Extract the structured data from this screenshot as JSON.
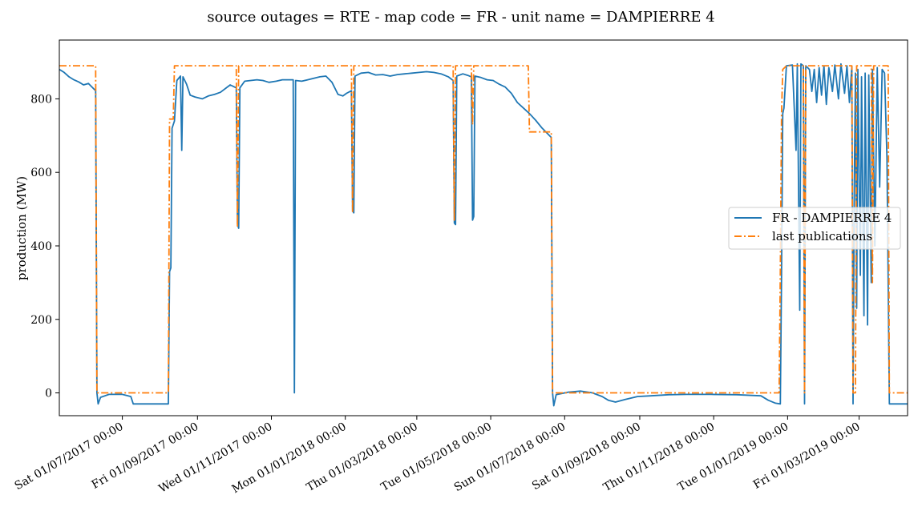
{
  "chart_data": {
    "type": "line",
    "title": "source outages = RTE - map code = FR - unit name = DAMPIERRE 4",
    "xlabel": "",
    "ylabel": "production (MW)",
    "x_axis": "date",
    "xlim": [
      "2017-05-10",
      "2019-04-10"
    ],
    "ylim": [
      -62,
      960
    ],
    "grid": false,
    "legend_position": "center-right",
    "x_ticks": [
      {
        "date": "2017-07-01",
        "label": "Sat 01/07/2017 00:00"
      },
      {
        "date": "2017-09-01",
        "label": "Fri 01/09/2017 00:00"
      },
      {
        "date": "2017-11-01",
        "label": "Wed 01/11/2017 00:00"
      },
      {
        "date": "2018-01-01",
        "label": "Mon 01/01/2018 00:00"
      },
      {
        "date": "2018-03-01",
        "label": "Thu 01/03/2018 00:00"
      },
      {
        "date": "2018-05-01",
        "label": "Tue 01/05/2018 00:00"
      },
      {
        "date": "2018-07-01",
        "label": "Sun 01/07/2018 00:00"
      },
      {
        "date": "2018-09-01",
        "label": "Sat 01/09/2018 00:00"
      },
      {
        "date": "2018-11-01",
        "label": "Thu 01/11/2018 00:00"
      },
      {
        "date": "2019-01-01",
        "label": "Tue 01/01/2019 00:00"
      },
      {
        "date": "2019-03-01",
        "label": "Fri 01/03/2019 00:00"
      }
    ],
    "y_ticks": [
      0,
      200,
      400,
      600,
      800
    ],
    "series": [
      {
        "name": "FR - DAMPIERRE 4",
        "color": "#1f77b4",
        "style": "solid",
        "points": [
          [
            "2017-05-10",
            880
          ],
          [
            "2017-05-14",
            872
          ],
          [
            "2017-05-18",
            860
          ],
          [
            "2017-05-22",
            852
          ],
          [
            "2017-05-26",
            846
          ],
          [
            "2017-05-30",
            838
          ],
          [
            "2017-06-03",
            842
          ],
          [
            "2017-06-06",
            832
          ],
          [
            "2017-06-09",
            822
          ],
          [
            "2017-06-10",
            0
          ],
          [
            "2017-06-11",
            -30
          ],
          [
            "2017-06-13",
            -12
          ],
          [
            "2017-06-20",
            -4
          ],
          [
            "2017-07-01",
            -4
          ],
          [
            "2017-07-08",
            -10
          ],
          [
            "2017-07-10",
            -30
          ],
          [
            "2017-07-25",
            -30
          ],
          [
            "2017-08-08",
            -30
          ],
          [
            "2017-08-09",
            330
          ],
          [
            "2017-08-10",
            340
          ],
          [
            "2017-08-11",
            720
          ],
          [
            "2017-08-13",
            740
          ],
          [
            "2017-08-15",
            850
          ],
          [
            "2017-08-18",
            862
          ],
          [
            "2017-08-19",
            660
          ],
          [
            "2017-08-20",
            860
          ],
          [
            "2017-08-23",
            840
          ],
          [
            "2017-08-26",
            810
          ],
          [
            "2017-08-30",
            805
          ],
          [
            "2017-09-05",
            800
          ],
          [
            "2017-09-10",
            808
          ],
          [
            "2017-09-15",
            812
          ],
          [
            "2017-09-20",
            818
          ],
          [
            "2017-09-28",
            838
          ],
          [
            "2017-10-03",
            830
          ],
          [
            "2017-10-04",
            460
          ],
          [
            "2017-10-05",
            448
          ],
          [
            "2017-10-06",
            830
          ],
          [
            "2017-10-10",
            848
          ],
          [
            "2017-10-15",
            850
          ],
          [
            "2017-10-20",
            852
          ],
          [
            "2017-10-25",
            850
          ],
          [
            "2017-10-30",
            845
          ],
          [
            "2017-11-05",
            848
          ],
          [
            "2017-11-10",
            852
          ],
          [
            "2017-11-19",
            852
          ],
          [
            "2017-11-20",
            0
          ],
          [
            "2017-11-21",
            850
          ],
          [
            "2017-11-26",
            848
          ],
          [
            "2017-12-01",
            852
          ],
          [
            "2017-12-06",
            856
          ],
          [
            "2017-12-11",
            860
          ],
          [
            "2017-12-16",
            862
          ],
          [
            "2017-12-21",
            845
          ],
          [
            "2017-12-26",
            812
          ],
          [
            "2017-12-30",
            808
          ],
          [
            "2018-01-02",
            815
          ],
          [
            "2018-01-06",
            822
          ],
          [
            "2018-01-07",
            495
          ],
          [
            "2018-01-08",
            490
          ],
          [
            "2018-01-09",
            862
          ],
          [
            "2018-01-14",
            870
          ],
          [
            "2018-01-20",
            872
          ],
          [
            "2018-01-26",
            865
          ],
          [
            "2018-02-01",
            866
          ],
          [
            "2018-02-07",
            862
          ],
          [
            "2018-02-13",
            866
          ],
          [
            "2018-02-19",
            868
          ],
          [
            "2018-02-25",
            870
          ],
          [
            "2018-03-03",
            872
          ],
          [
            "2018-03-09",
            874
          ],
          [
            "2018-03-15",
            872
          ],
          [
            "2018-03-21",
            868
          ],
          [
            "2018-03-27",
            860
          ],
          [
            "2018-03-31",
            850
          ],
          [
            "2018-04-01",
            462
          ],
          [
            "2018-04-02",
            458
          ],
          [
            "2018-04-03",
            862
          ],
          [
            "2018-04-08",
            868
          ],
          [
            "2018-04-12",
            864
          ],
          [
            "2018-04-15",
            860
          ],
          [
            "2018-04-16",
            470
          ],
          [
            "2018-04-17",
            480
          ],
          [
            "2018-04-18",
            862
          ],
          [
            "2018-04-23",
            858
          ],
          [
            "2018-04-28",
            852
          ],
          [
            "2018-05-03",
            850
          ],
          [
            "2018-05-08",
            840
          ],
          [
            "2018-05-13",
            832
          ],
          [
            "2018-05-18",
            815
          ],
          [
            "2018-05-23",
            790
          ],
          [
            "2018-05-28",
            775
          ],
          [
            "2018-06-02",
            760
          ],
          [
            "2018-06-07",
            742
          ],
          [
            "2018-06-12",
            722
          ],
          [
            "2018-06-17",
            705
          ],
          [
            "2018-06-20",
            695
          ],
          [
            "2018-06-21",
            0
          ],
          [
            "2018-06-22",
            -35
          ],
          [
            "2018-06-24",
            -5
          ],
          [
            "2018-07-04",
            2
          ],
          [
            "2018-07-14",
            5
          ],
          [
            "2018-07-24",
            0
          ],
          [
            "2018-08-01",
            -10
          ],
          [
            "2018-08-06",
            -20
          ],
          [
            "2018-08-12",
            -25
          ],
          [
            "2018-08-20",
            -18
          ],
          [
            "2018-08-30",
            -10
          ],
          [
            "2018-09-10",
            -8
          ],
          [
            "2018-09-25",
            -5
          ],
          [
            "2018-10-10",
            -4
          ],
          [
            "2018-10-30",
            -4
          ],
          [
            "2018-11-20",
            -5
          ],
          [
            "2018-12-10",
            -8
          ],
          [
            "2018-12-16",
            -20
          ],
          [
            "2018-12-22",
            -28
          ],
          [
            "2018-12-26",
            -30
          ],
          [
            "2018-12-27",
            320
          ],
          [
            "2018-12-28",
            760
          ],
          [
            "2018-12-29",
            775
          ],
          [
            "2018-12-31",
            890
          ],
          [
            "2019-01-05",
            892
          ],
          [
            "2019-01-08",
            660
          ],
          [
            "2019-01-09",
            895
          ],
          [
            "2019-01-11",
            225
          ],
          [
            "2019-01-12",
            895
          ],
          [
            "2019-01-14",
            890
          ],
          [
            "2019-01-15",
            -30
          ],
          [
            "2019-01-16",
            890
          ],
          [
            "2019-01-19",
            880
          ],
          [
            "2019-01-21",
            820
          ],
          [
            "2019-01-23",
            880
          ],
          [
            "2019-01-25",
            790
          ],
          [
            "2019-01-27",
            885
          ],
          [
            "2019-01-29",
            810
          ],
          [
            "2019-01-31",
            890
          ],
          [
            "2019-02-02",
            785
          ],
          [
            "2019-02-04",
            885
          ],
          [
            "2019-02-07",
            820
          ],
          [
            "2019-02-09",
            892
          ],
          [
            "2019-02-12",
            800
          ],
          [
            "2019-02-14",
            895
          ],
          [
            "2019-02-17",
            815
          ],
          [
            "2019-02-19",
            890
          ],
          [
            "2019-02-21",
            790
          ],
          [
            "2019-02-23",
            888
          ],
          [
            "2019-02-24",
            -30
          ],
          [
            "2019-02-25",
            560
          ],
          [
            "2019-02-26",
            870
          ],
          [
            "2019-02-27",
            230
          ],
          [
            "2019-02-28",
            880
          ],
          [
            "2019-03-02",
            320
          ],
          [
            "2019-03-03",
            860
          ],
          [
            "2019-03-05",
            210
          ],
          [
            "2019-03-06",
            870
          ],
          [
            "2019-03-08",
            185
          ],
          [
            "2019-03-09",
            865
          ],
          [
            "2019-03-11",
            300
          ],
          [
            "2019-03-12",
            880
          ],
          [
            "2019-03-14",
            400
          ],
          [
            "2019-03-16",
            885
          ],
          [
            "2019-03-18",
            560
          ],
          [
            "2019-03-20",
            880
          ],
          [
            "2019-03-22",
            870
          ],
          [
            "2019-03-24",
            640
          ],
          [
            "2019-03-26",
            -30
          ],
          [
            "2019-04-10",
            -30
          ]
        ]
      },
      {
        "name": "last publications",
        "color": "#ff7f0e",
        "style": "dashdot",
        "points": [
          [
            "2017-05-10",
            890
          ],
          [
            "2017-06-09",
            890
          ],
          [
            "2017-06-10",
            0
          ],
          [
            "2017-08-08",
            0
          ],
          [
            "2017-08-09",
            745
          ],
          [
            "2017-08-12",
            745
          ],
          [
            "2017-08-13",
            890
          ],
          [
            "2017-10-03",
            890
          ],
          [
            "2017-10-04",
            450
          ],
          [
            "2017-10-05",
            890
          ],
          [
            "2018-01-06",
            890
          ],
          [
            "2018-01-07",
            490
          ],
          [
            "2018-01-08",
            890
          ],
          [
            "2018-03-31",
            890
          ],
          [
            "2018-04-01",
            470
          ],
          [
            "2018-04-02",
            890
          ],
          [
            "2018-04-15",
            890
          ],
          [
            "2018-04-16",
            730
          ],
          [
            "2018-04-17",
            890
          ],
          [
            "2018-06-01",
            890
          ],
          [
            "2018-06-02",
            710
          ],
          [
            "2018-06-20",
            710
          ],
          [
            "2018-06-21",
            0
          ],
          [
            "2018-12-25",
            0
          ],
          [
            "2018-12-26",
            330
          ],
          [
            "2018-12-27",
            760
          ],
          [
            "2018-12-28",
            880
          ],
          [
            "2018-12-31",
            890
          ],
          [
            "2019-01-14",
            890
          ],
          [
            "2019-01-15",
            0
          ],
          [
            "2019-01-16",
            890
          ],
          [
            "2019-02-23",
            890
          ],
          [
            "2019-02-24",
            0
          ],
          [
            "2019-02-26",
            0
          ],
          [
            "2019-02-27",
            890
          ],
          [
            "2019-03-11",
            890
          ],
          [
            "2019-03-12",
            300
          ],
          [
            "2019-03-13",
            890
          ],
          [
            "2019-03-25",
            890
          ],
          [
            "2019-03-26",
            0
          ],
          [
            "2019-04-10",
            0
          ]
        ]
      }
    ]
  }
}
